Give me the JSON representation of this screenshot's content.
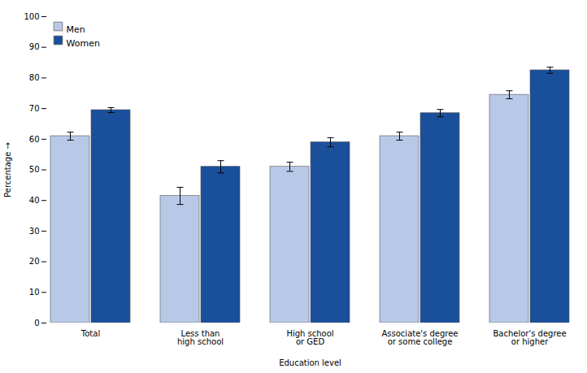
{
  "chart_data": {
    "type": "bar",
    "categories": [
      "Total",
      "Less than\nhigh school",
      "High school\nor GED",
      "Associate's degree\nor some college",
      "Bachelor's degree\nor higher"
    ],
    "series": [
      {
        "name": "Men",
        "color": "#b8c9e8",
        "values": [
          61.0,
          41.5,
          51.0,
          61.0,
          74.5
        ],
        "errors": [
          1.3,
          2.8,
          1.5,
          1.3,
          1.3
        ]
      },
      {
        "name": "Women",
        "color": "#1a4f9c",
        "values": [
          69.5,
          51.0,
          59.0,
          68.5,
          82.5
        ],
        "errors": [
          0.8,
          2.0,
          1.5,
          1.2,
          1.0
        ]
      }
    ],
    "xlabel": "Education level",
    "ylabel": "Percentage",
    "ylim": [
      0,
      100
    ],
    "yticks": [
      0,
      10,
      20,
      30,
      40,
      50,
      60,
      70,
      80,
      90,
      100
    ],
    "legend": "upper left",
    "grid": false
  }
}
